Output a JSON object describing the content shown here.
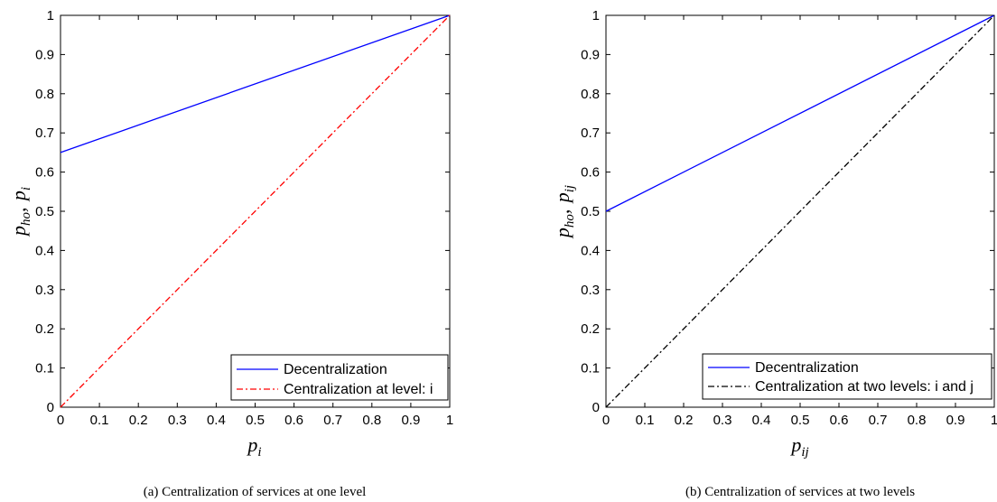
{
  "chart_data": [
    {
      "type": "line",
      "caption": "(a) Centralization of services at one level",
      "xlabel": "p_i",
      "ylabel": "p_ho, p_i",
      "xlim": [
        0,
        1
      ],
      "ylim": [
        0,
        1
      ],
      "xticks": [
        "0",
        "0.1",
        "0.2",
        "0.3",
        "0.4",
        "0.5",
        "0.6",
        "0.7",
        "0.8",
        "0.9",
        "1"
      ],
      "yticks": [
        "0",
        "0.1",
        "0.2",
        "0.3",
        "0.4",
        "0.5",
        "0.6",
        "0.7",
        "0.8",
        "0.9",
        "1"
      ],
      "grid": false,
      "legend_position": "bottom-right",
      "series": [
        {
          "name": "Decentralization",
          "color": "#0000ff",
          "style": "solid",
          "x": [
            0,
            1
          ],
          "y": [
            0.65,
            1
          ]
        },
        {
          "name": "Centralization at level: i",
          "color": "#ff0000",
          "style": "dash-dot",
          "x": [
            0,
            1
          ],
          "y": [
            0,
            1
          ]
        }
      ]
    },
    {
      "type": "line",
      "caption": "(b) Centralization of services at two levels",
      "xlabel": "p_ij",
      "ylabel": "p_ho, p_ij",
      "xlim": [
        0,
        1
      ],
      "ylim": [
        0,
        1
      ],
      "xticks": [
        "0",
        "0.1",
        "0.2",
        "0.3",
        "0.4",
        "0.5",
        "0.6",
        "0.7",
        "0.8",
        "0.9",
        "1"
      ],
      "yticks": [
        "0",
        "0.1",
        "0.2",
        "0.3",
        "0.4",
        "0.5",
        "0.6",
        "0.7",
        "0.8",
        "0.9",
        "1"
      ],
      "grid": false,
      "legend_position": "bottom-right",
      "series": [
        {
          "name": "Decentralization",
          "color": "#0000ff",
          "style": "solid",
          "x": [
            0,
            1
          ],
          "y": [
            0.5,
            1
          ]
        },
        {
          "name": "Centralization at two levels: i and j",
          "color": "#000000",
          "style": "dash-dot",
          "x": [
            0,
            1
          ],
          "y": [
            0,
            1
          ]
        }
      ]
    }
  ]
}
